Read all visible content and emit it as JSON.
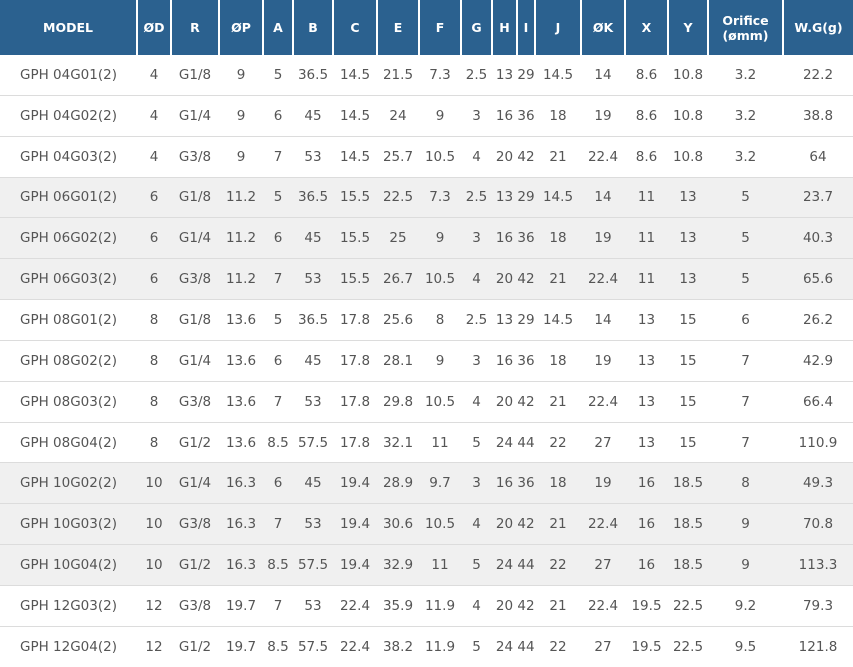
{
  "colors": {
    "header_bg": "#2b618f",
    "header_text": "#ffffff",
    "header_divider": "#ffffff",
    "body_text": "#555555",
    "row_border": "#dcdcdc",
    "row_bg": "#ffffff",
    "row_alt_bg": "#f0f0f0"
  },
  "chart_data": {
    "type": "table",
    "title": "",
    "legend_position": "none",
    "grid": "horizontal-row-borders",
    "columns": [
      "MODEL",
      "ØD",
      "R",
      "ØP",
      "A",
      "B",
      "C",
      "E",
      "F",
      "G",
      "H",
      "I",
      "J",
      "ØK",
      "X",
      "Y",
      "Orifice\n(ømm)",
      "W.G(g)"
    ],
    "rows": [
      {
        "shaded": false,
        "cells": [
          "GPH 04G01(2)",
          "4",
          "G1/8",
          "9",
          "5",
          "36.5",
          "14.5",
          "21.5",
          "7.3",
          "2.5",
          "13",
          "29",
          "14.5",
          "14",
          "8.6",
          "10.8",
          "3.2",
          "22.2"
        ]
      },
      {
        "shaded": false,
        "cells": [
          "GPH 04G02(2)",
          "4",
          "G1/4",
          "9",
          "6",
          "45",
          "14.5",
          "24",
          "9",
          "3",
          "16",
          "36",
          "18",
          "19",
          "8.6",
          "10.8",
          "3.2",
          "38.8"
        ]
      },
      {
        "shaded": false,
        "cells": [
          "GPH 04G03(2)",
          "4",
          "G3/8",
          "9",
          "7",
          "53",
          "14.5",
          "25.7",
          "10.5",
          "4",
          "20",
          "42",
          "21",
          "22.4",
          "8.6",
          "10.8",
          "3.2",
          "64"
        ]
      },
      {
        "shaded": true,
        "cells": [
          "GPH 06G01(2)",
          "6",
          "G1/8",
          "11.2",
          "5",
          "36.5",
          "15.5",
          "22.5",
          "7.3",
          "2.5",
          "13",
          "29",
          "14.5",
          "14",
          "11",
          "13",
          "5",
          "23.7"
        ]
      },
      {
        "shaded": true,
        "cells": [
          "GPH 06G02(2)",
          "6",
          "G1/4",
          "11.2",
          "6",
          "45",
          "15.5",
          "25",
          "9",
          "3",
          "16",
          "36",
          "18",
          "19",
          "11",
          "13",
          "5",
          "40.3"
        ]
      },
      {
        "shaded": true,
        "cells": [
          "GPH 06G03(2)",
          "6",
          "G3/8",
          "11.2",
          "7",
          "53",
          "15.5",
          "26.7",
          "10.5",
          "4",
          "20",
          "42",
          "21",
          "22.4",
          "11",
          "13",
          "5",
          "65.6"
        ]
      },
      {
        "shaded": false,
        "cells": [
          "GPH 08G01(2)",
          "8",
          "G1/8",
          "13.6",
          "5",
          "36.5",
          "17.8",
          "25.6",
          "8",
          "2.5",
          "13",
          "29",
          "14.5",
          "14",
          "13",
          "15",
          "6",
          "26.2"
        ]
      },
      {
        "shaded": false,
        "cells": [
          "GPH 08G02(2)",
          "8",
          "G1/4",
          "13.6",
          "6",
          "45",
          "17.8",
          "28.1",
          "9",
          "3",
          "16",
          "36",
          "18",
          "19",
          "13",
          "15",
          "7",
          "42.9"
        ]
      },
      {
        "shaded": false,
        "cells": [
          "GPH 08G03(2)",
          "8",
          "G3/8",
          "13.6",
          "7",
          "53",
          "17.8",
          "29.8",
          "10.5",
          "4",
          "20",
          "42",
          "21",
          "22.4",
          "13",
          "15",
          "7",
          "66.4"
        ]
      },
      {
        "shaded": false,
        "cells": [
          "GPH 08G04(2)",
          "8",
          "G1/2",
          "13.6",
          "8.5",
          "57.5",
          "17.8",
          "32.1",
          "11",
          "5",
          "24",
          "44",
          "22",
          "27",
          "13",
          "15",
          "7",
          "110.9"
        ]
      },
      {
        "shaded": true,
        "cells": [
          "GPH 10G02(2)",
          "10",
          "G1/4",
          "16.3",
          "6",
          "45",
          "19.4",
          "28.9",
          "9.7",
          "3",
          "16",
          "36",
          "18",
          "19",
          "16",
          "18.5",
          "8",
          "49.3"
        ]
      },
      {
        "shaded": true,
        "cells": [
          "GPH 10G03(2)",
          "10",
          "G3/8",
          "16.3",
          "7",
          "53",
          "19.4",
          "30.6",
          "10.5",
          "4",
          "20",
          "42",
          "21",
          "22.4",
          "16",
          "18.5",
          "9",
          "70.8"
        ]
      },
      {
        "shaded": true,
        "cells": [
          "GPH 10G04(2)",
          "10",
          "G1/2",
          "16.3",
          "8.5",
          "57.5",
          "19.4",
          "32.9",
          "11",
          "5",
          "24",
          "44",
          "22",
          "27",
          "16",
          "18.5",
          "9",
          "113.3"
        ]
      },
      {
        "shaded": false,
        "cells": [
          "GPH 12G03(2)",
          "12",
          "G3/8",
          "19.7",
          "7",
          "53",
          "22.4",
          "35.9",
          "11.9",
          "4",
          "20",
          "42",
          "21",
          "22.4",
          "19.5",
          "22.5",
          "9.2",
          "79.3"
        ]
      },
      {
        "shaded": false,
        "cells": [
          "GPH 12G04(2)",
          "12",
          "G1/2",
          "19.7",
          "8.5",
          "57.5",
          "22.4",
          "38.2",
          "11.9",
          "5",
          "24",
          "44",
          "22",
          "27",
          "19.5",
          "22.5",
          "9.5",
          "121.8"
        ]
      }
    ]
  }
}
